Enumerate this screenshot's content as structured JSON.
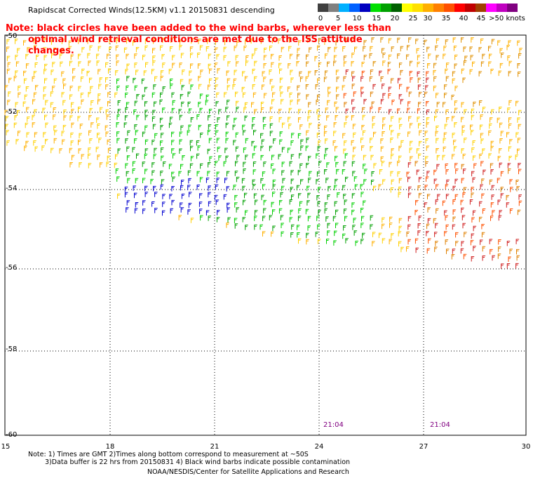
{
  "title": "Rapidscat Corrected Winds(12.5KM) v1.1 20150831 descending",
  "note_line1": "Note: black circles have been added to the wind barbs, wherever less than",
  "note_line2": "optimal wind retrieval conditions are met due to the ISS attitude changes.",
  "legend": {
    "labels": [
      "0",
      "5",
      "10",
      "15",
      "20",
      "25",
      "30",
      "35",
      "40",
      "45",
      ">50 knots"
    ],
    "colors": [
      "#404040",
      "#808080",
      "#00b0ff",
      "#0060ff",
      "#0000c0",
      "#00e000",
      "#00a000",
      "#006000",
      "#ffff00",
      "#ffe000",
      "#ffb000",
      "#ff8000",
      "#ff5000",
      "#ff0000",
      "#c00000",
      "#a04000",
      "#ff00ff",
      "#c000c0",
      "#800080"
    ]
  },
  "latitudes": [
    "-50",
    "-52",
    "-54",
    "-56",
    "-58",
    "-60"
  ],
  "longitudes": [
    "15",
    "18",
    "21",
    "24",
    "27",
    "30"
  ],
  "time_labels": [
    "21:04",
    "21:04"
  ],
  "footer_line1": "Note: 1) Times are GMT 2)Times along bottom correspond to measurement at ~50S",
  "footer_line2": "3)Data buffer is 22 hrs from 20150831 4) Black wind barbs indicate possible contamination",
  "footer_line3": "NOAA/NESDIS/Center for Satellite Applications and Research"
}
